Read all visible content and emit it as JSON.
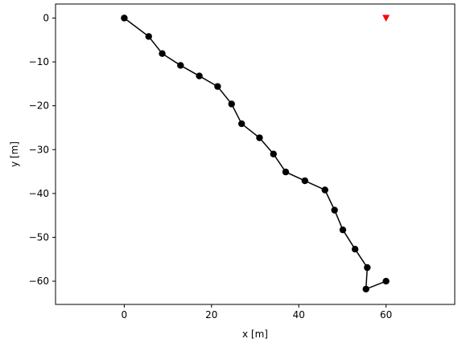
{
  "chart_data": {
    "type": "line",
    "title": "",
    "xlabel": "x [m]",
    "ylabel": "y [m]",
    "xlim": [
      -15.75,
      75.75
    ],
    "ylim": [
      -65.3,
      3.2
    ],
    "grid": false,
    "x_ticks": [
      {
        "value": 0,
        "label": "0"
      },
      {
        "value": 20,
        "label": "20"
      },
      {
        "value": 40,
        "label": "40"
      },
      {
        "value": 60,
        "label": "60"
      }
    ],
    "y_ticks": [
      {
        "value": 0,
        "label": "0"
      },
      {
        "value": -10,
        "label": "−10"
      },
      {
        "value": -20,
        "label": "−20"
      },
      {
        "value": -30,
        "label": "−30"
      },
      {
        "value": -40,
        "label": "−40"
      },
      {
        "value": -50,
        "label": "−50"
      },
      {
        "value": -60,
        "label": "−60"
      }
    ],
    "series": [
      {
        "color": "#000000",
        "marker": "circle",
        "points": [
          [
            0.0,
            0.0
          ],
          [
            5.6,
            -4.2
          ],
          [
            8.7,
            -8.1
          ],
          [
            12.9,
            -10.8
          ],
          [
            17.2,
            -13.2
          ],
          [
            21.4,
            -15.6
          ],
          [
            24.6,
            -19.6
          ],
          [
            26.9,
            -24.1
          ],
          [
            31.0,
            -27.3
          ],
          [
            34.2,
            -31.0
          ],
          [
            37.0,
            -35.1
          ],
          [
            41.4,
            -37.1
          ],
          [
            46.0,
            -39.2
          ],
          [
            48.2,
            -43.8
          ],
          [
            50.1,
            -48.3
          ],
          [
            52.9,
            -52.7
          ],
          [
            55.7,
            -56.9
          ],
          [
            55.4,
            -61.8
          ],
          [
            60.0,
            -60.0
          ]
        ]
      },
      {
        "color": "#ff0000",
        "marker": "triangle-down",
        "points": [
          [
            60.0,
            0.0
          ]
        ]
      }
    ]
  }
}
